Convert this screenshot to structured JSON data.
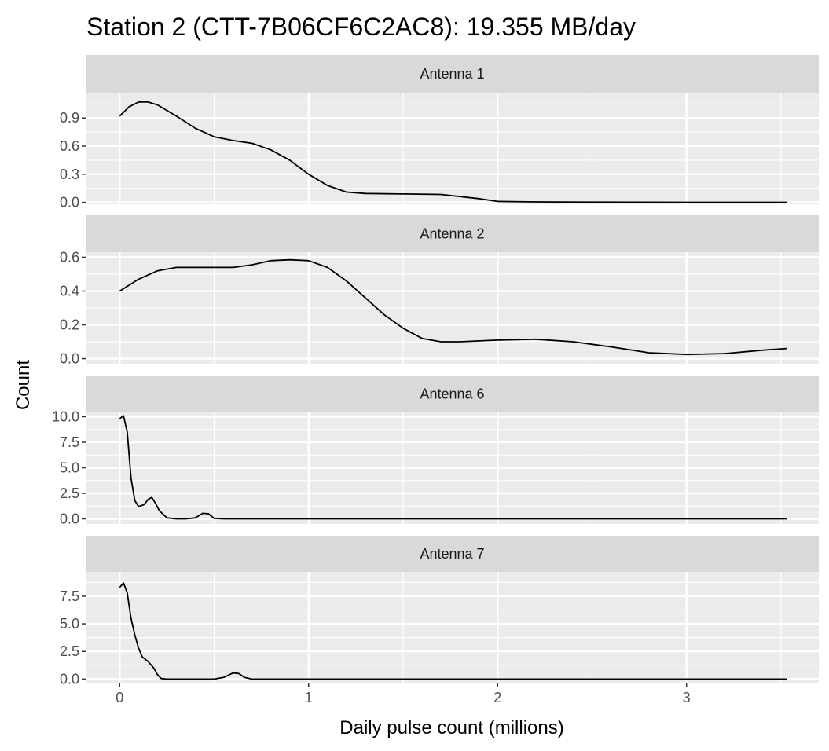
{
  "chart_data": {
    "type": "line",
    "title": "Station 2 (CTT-7B06CF6C2AC8): 19.355 MB/day",
    "xlabel": "Daily pulse count (millions)",
    "ylabel": "Count",
    "xlim": [
      -0.18,
      3.7
    ],
    "x_ticks": [
      0,
      1,
      2,
      3
    ],
    "x_tick_labels": [
      "0",
      "1",
      "2",
      "3"
    ],
    "grid": true,
    "panels": [
      {
        "strip_label": "Antenna 1",
        "ylim": [
          -0.02,
          1.17
        ],
        "y_ticks": [
          0.0,
          0.3,
          0.6,
          0.9
        ],
        "y_tick_labels": [
          "0.0",
          "0.3",
          "0.6",
          "0.9"
        ],
        "x": [
          0,
          0.05,
          0.1,
          0.15,
          0.2,
          0.3,
          0.4,
          0.5,
          0.6,
          0.7,
          0.8,
          0.9,
          1.0,
          1.1,
          1.2,
          1.3,
          1.5,
          1.7,
          1.9,
          2.0,
          2.2,
          2.5,
          3.0,
          3.53
        ],
        "y": [
          0.92,
          1.02,
          1.07,
          1.07,
          1.04,
          0.92,
          0.79,
          0.7,
          0.66,
          0.63,
          0.56,
          0.45,
          0.3,
          0.18,
          0.11,
          0.095,
          0.09,
          0.085,
          0.04,
          0.01,
          0.005,
          0.003,
          0.001,
          0.001
        ]
      },
      {
        "strip_label": "Antenna 2",
        "ylim": [
          -0.03,
          0.63
        ],
        "y_ticks": [
          0.0,
          0.2,
          0.4,
          0.6
        ],
        "y_tick_labels": [
          "0.0",
          "0.2",
          "0.4",
          "0.6"
        ],
        "x": [
          0,
          0.1,
          0.2,
          0.3,
          0.4,
          0.5,
          0.6,
          0.7,
          0.8,
          0.9,
          1.0,
          1.1,
          1.2,
          1.3,
          1.4,
          1.5,
          1.6,
          1.7,
          1.8,
          2.0,
          2.2,
          2.4,
          2.6,
          2.8,
          3.0,
          3.2,
          3.4,
          3.53
        ],
        "y": [
          0.4,
          0.47,
          0.52,
          0.54,
          0.54,
          0.54,
          0.54,
          0.555,
          0.58,
          0.585,
          0.58,
          0.54,
          0.46,
          0.36,
          0.26,
          0.18,
          0.12,
          0.1,
          0.1,
          0.11,
          0.115,
          0.1,
          0.07,
          0.035,
          0.025,
          0.03,
          0.05,
          0.06
        ]
      },
      {
        "strip_label": "Antenna 6",
        "ylim": [
          -0.5,
          10.5
        ],
        "y_ticks": [
          0.0,
          2.5,
          5.0,
          7.5,
          10.0
        ],
        "y_tick_labels": [
          "0.0",
          "2.5",
          "5.0",
          "7.5",
          "10.0"
        ],
        "x": [
          0,
          0.02,
          0.04,
          0.06,
          0.08,
          0.1,
          0.13,
          0.15,
          0.17,
          0.19,
          0.21,
          0.25,
          0.3,
          0.35,
          0.4,
          0.44,
          0.47,
          0.5,
          0.55,
          1.0,
          2.0,
          3.53
        ],
        "y": [
          9.8,
          10.1,
          8.5,
          4.0,
          1.8,
          1.2,
          1.4,
          1.9,
          2.1,
          1.5,
          0.8,
          0.1,
          0.0,
          0.0,
          0.1,
          0.55,
          0.5,
          0.05,
          0.0,
          0.0,
          0.0,
          0.0
        ]
      },
      {
        "strip_label": "Antenna 7",
        "ylim": [
          -0.4,
          9.7
        ],
        "y_ticks": [
          0.0,
          2.5,
          5.0,
          7.5
        ],
        "y_tick_labels": [
          "0.0",
          "2.5",
          "5.0",
          "7.5"
        ],
        "x": [
          0,
          0.02,
          0.04,
          0.06,
          0.08,
          0.1,
          0.12,
          0.15,
          0.18,
          0.2,
          0.22,
          0.25,
          0.3,
          0.4,
          0.5,
          0.55,
          0.6,
          0.63,
          0.66,
          0.7,
          1.0,
          2.0,
          3.53
        ],
        "y": [
          8.3,
          8.7,
          7.8,
          5.5,
          4.0,
          2.8,
          2.0,
          1.6,
          1.0,
          0.4,
          0.05,
          0.0,
          0.0,
          0.0,
          0.0,
          0.15,
          0.55,
          0.5,
          0.15,
          0.0,
          0.0,
          0.0,
          0.0
        ]
      }
    ]
  }
}
